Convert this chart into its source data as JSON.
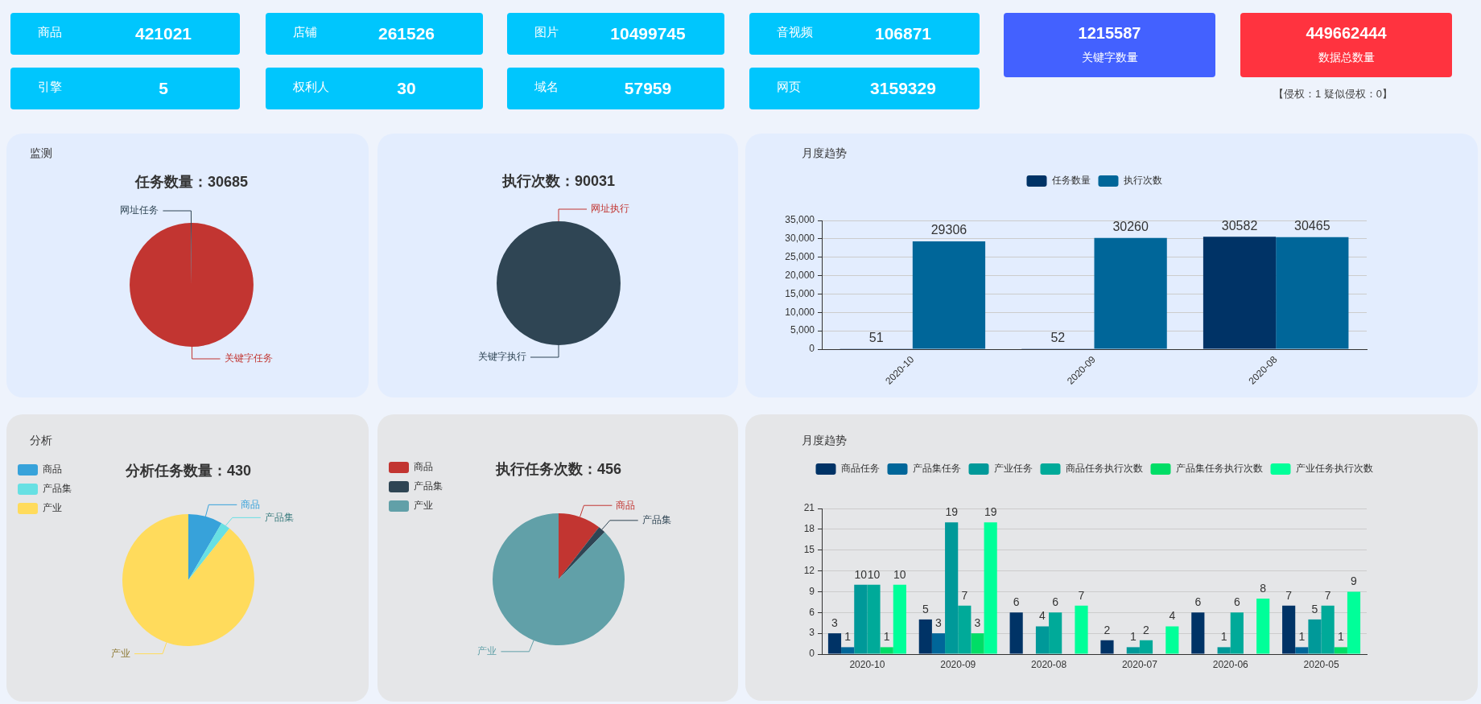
{
  "chart_data": [
    {
      "type": "other",
      "annotations": [
        "商品",
        "421021",
        "店铺",
        "261526",
        "图片",
        "10499745",
        "音视频",
        "106871",
        "1215587",
        "关键字数量",
        "449662444",
        "数据总数量",
        "引擎",
        "5",
        "权利人",
        "30",
        "域名",
        "57959",
        "网页",
        "3159329",
        "【侵权：1 疑似侵权：0】"
      ]
    },
    {
      "type": "pie",
      "title": "任务数量：30685",
      "annotations": [
        "监测"
      ],
      "categories": [
        "关键字任务",
        "网址任务"
      ],
      "values": [
        99.8,
        0.2
      ],
      "colors": [
        "#c23531",
        "#2f4554"
      ]
    },
    {
      "type": "pie",
      "title": "执行次数：90031",
      "categories": [
        "网址执行",
        "关键字执行"
      ],
      "values": [
        0,
        100
      ],
      "colors": [
        "#c23531",
        "#2f4554"
      ]
    },
    {
      "type": "bar",
      "title": "月度趋势",
      "categories": [
        "2020-10",
        "2020-09",
        "2020-08"
      ],
      "series": [
        {
          "name": "任务数量",
          "color": "#003366",
          "values": [
            51,
            52,
            30582
          ]
        },
        {
          "name": "执行次数",
          "color": "#006699",
          "values": [
            29306,
            30260,
            30465
          ]
        }
      ],
      "ylim": [
        0,
        35000
      ],
      "yticks": [
        0,
        {
          "value": 5000,
          "label": "5,000"
        },
        {
          "value": 10000,
          "label": "10,000"
        },
        {
          "value": 15000,
          "label": "15,000"
        },
        {
          "value": 20000,
          "label": "20,000"
        },
        {
          "value": 25000,
          "label": "25,000"
        },
        {
          "value": 30000,
          "label": "30,000"
        },
        {
          "value": 35000,
          "label": "35,000"
        }
      ],
      "grid": "y",
      "legend": "top",
      "data_labels": true
    },
    {
      "type": "pie",
      "title": "分析任务数量：430",
      "annotations": [
        "分析"
      ],
      "categories": [
        "商品",
        "产品集",
        "产业"
      ],
      "values": [
        8.4,
        2.3,
        89.3
      ],
      "colors": [
        "#37a2da",
        "#67e0e3",
        "#ffdb5c"
      ],
      "legend": "top left"
    },
    {
      "type": "pie",
      "title": "执行任务次数：456",
      "categories": [
        "商品",
        "产品集",
        "产业"
      ],
      "values": [
        10.5,
        1.8,
        87.7
      ],
      "colors": [
        "#c23531",
        "#2f4554",
        "#61a0a8"
      ],
      "legend": "top left"
    },
    {
      "type": "bar",
      "title": "月度趋势",
      "categories": [
        "2020-10",
        "2020-09",
        "2020-08",
        "2020-07",
        "2020-06",
        "2020-05"
      ],
      "series": [
        {
          "name": "商品任务",
          "color": "#003366",
          "values": [
            3,
            5,
            6,
            2,
            6,
            7
          ]
        },
        {
          "name": "产品集任务",
          "color": "#006699",
          "values": [
            1,
            3,
            null,
            null,
            null,
            1
          ]
        },
        {
          "name": "产业任务",
          "color": "#009999",
          "values": [
            10,
            19,
            4,
            1,
            1,
            5
          ]
        },
        {
          "name": "商品任务执行次数",
          "color": "#00aa99",
          "values": [
            10,
            7,
            6,
            2,
            6,
            7
          ]
        },
        {
          "name": "产品集任务执行次数",
          "color": "#00dd66",
          "values": [
            1,
            3,
            null,
            null,
            null,
            1
          ]
        },
        {
          "name": "产业任务执行次数",
          "color": "#00ff99",
          "values": [
            10,
            19,
            7,
            4,
            8,
            9
          ]
        }
      ],
      "ylim": [
        0,
        21
      ],
      "yticks": [
        0,
        3,
        6,
        9,
        12,
        15,
        18,
        21
      ],
      "grid": "y",
      "legend": "top",
      "data_labels": true
    }
  ]
}
